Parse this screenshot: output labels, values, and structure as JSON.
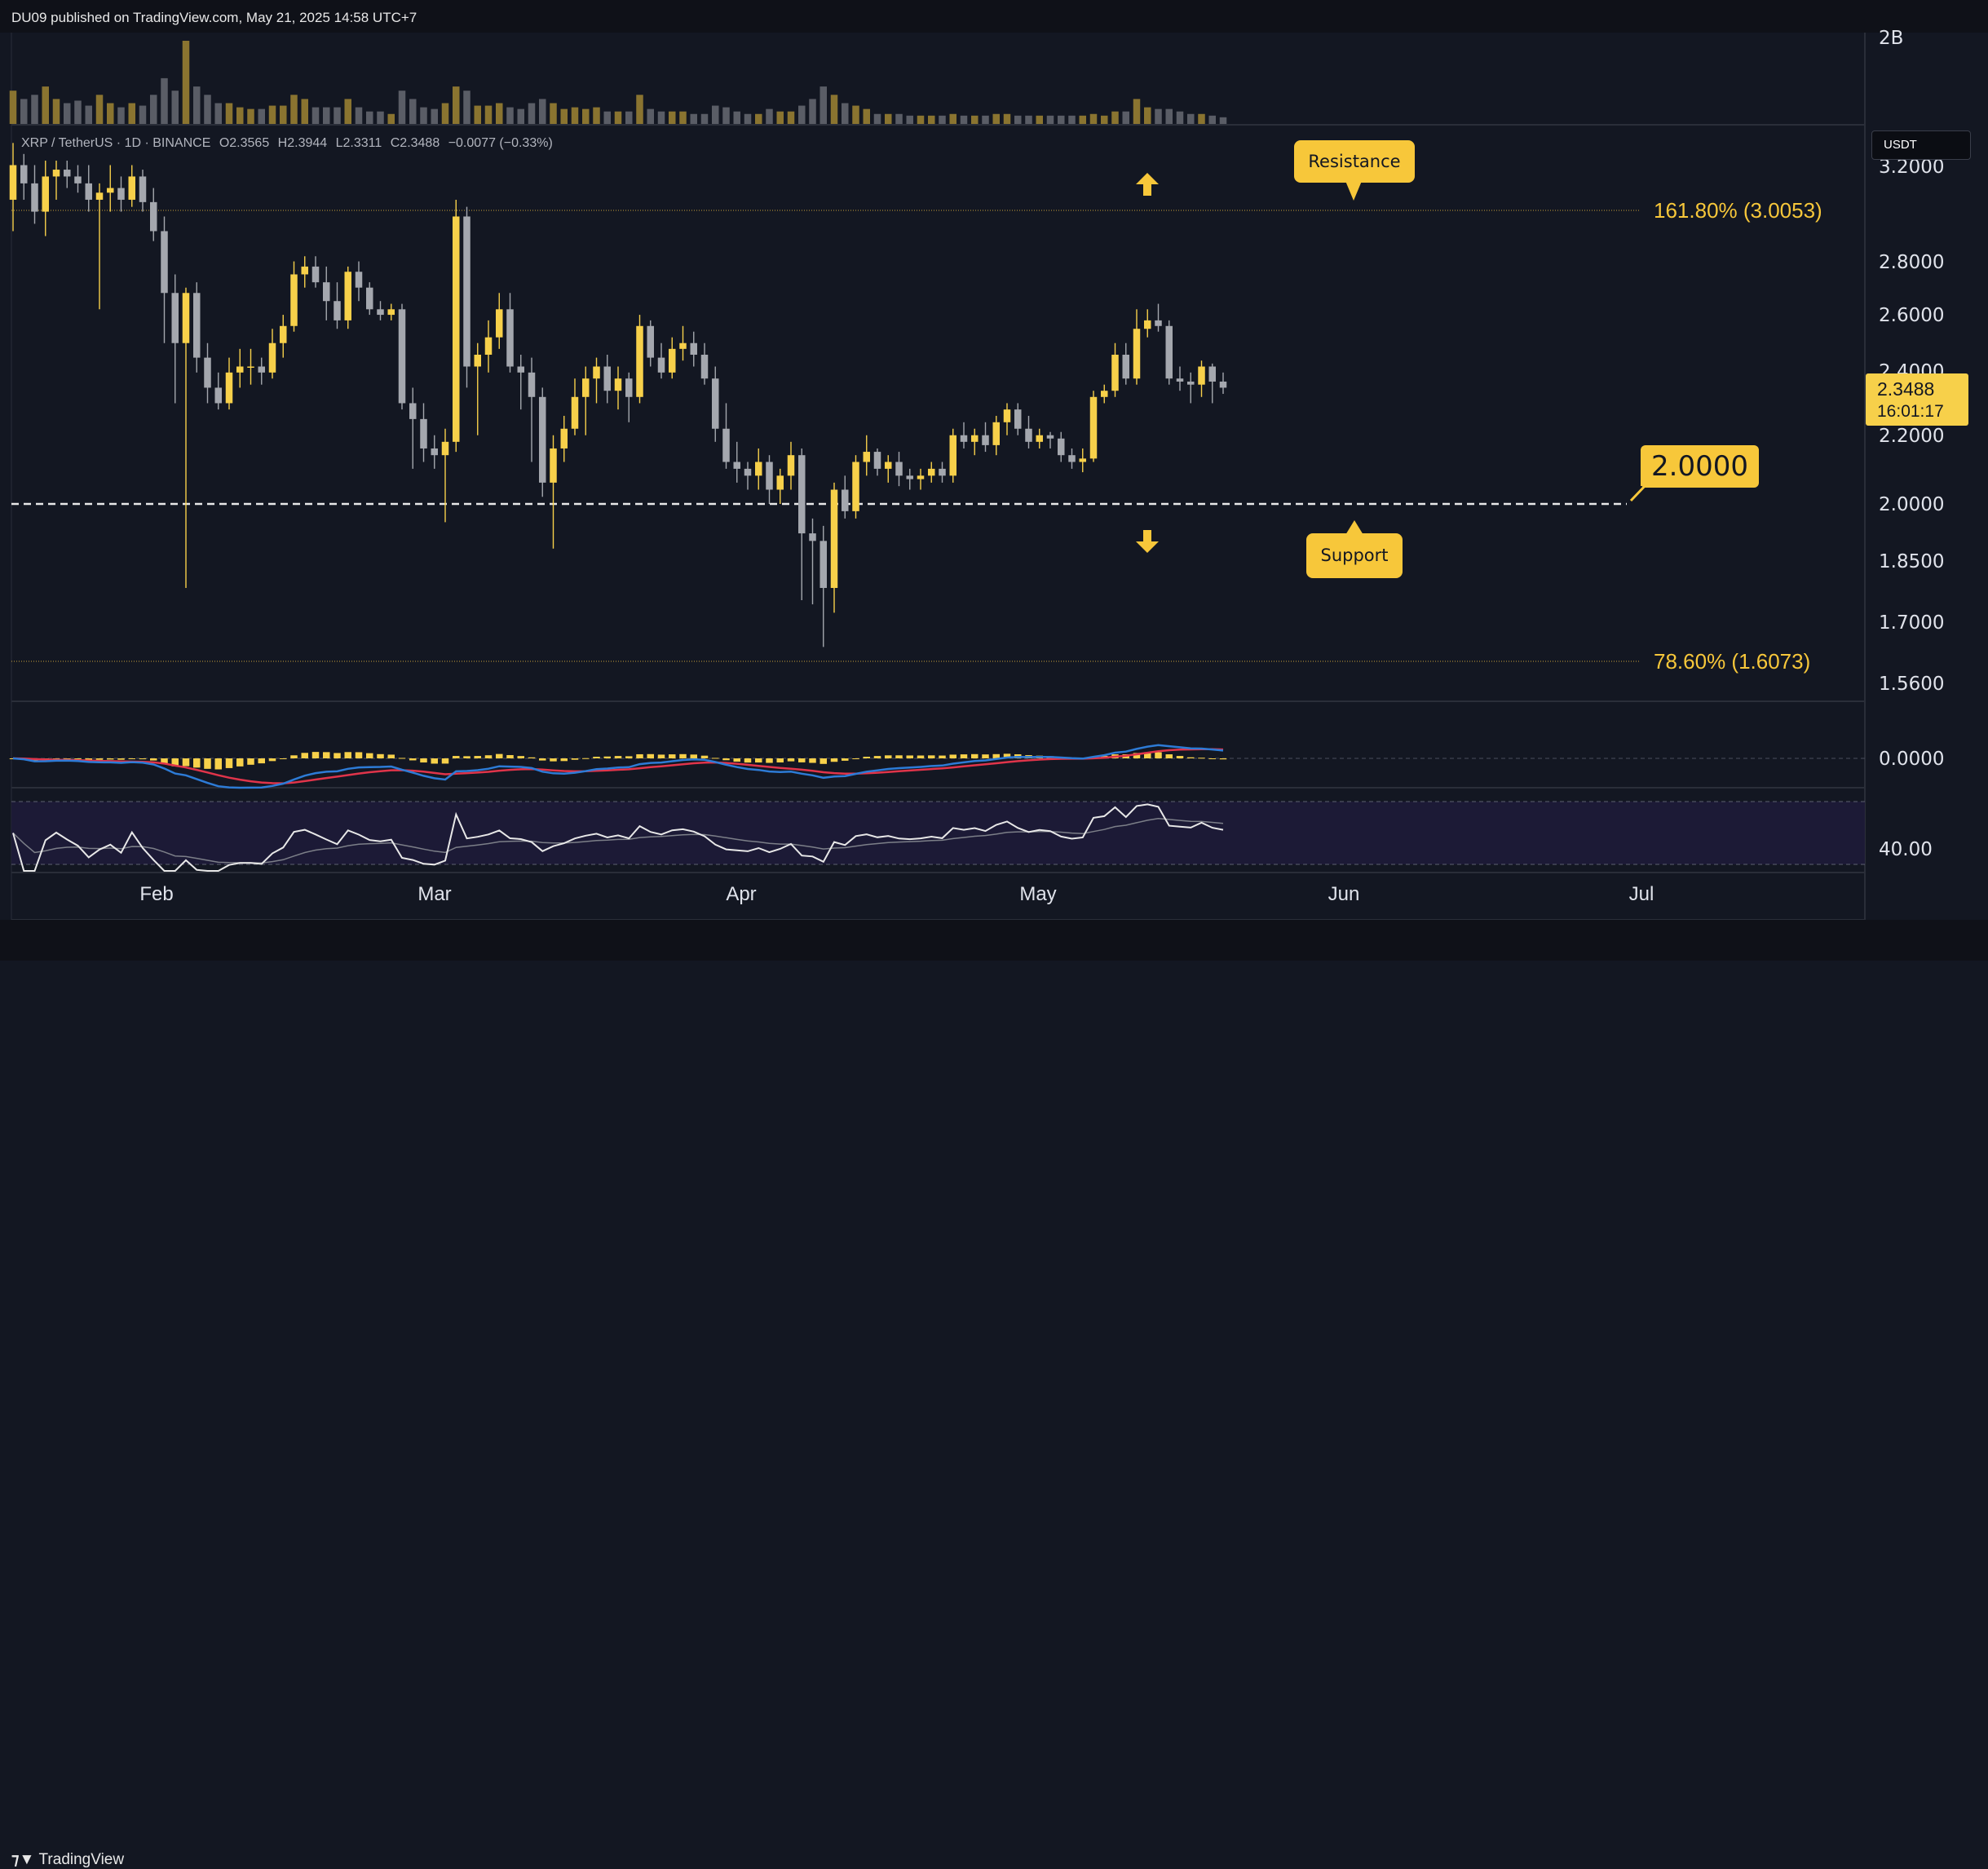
{
  "header": {
    "published": "DU09 published on TradingView.com, May 21, 2025 14:58 UTC+7"
  },
  "legend": {
    "symbol": "XRP / TetherUS · 1D · BINANCE",
    "open": "O2.3565",
    "high": "H2.3944",
    "low": "L2.3311",
    "close": "C2.3488",
    "change": "−0.0077 (−0.33%)"
  },
  "currency_button": "USDT",
  "last_price": {
    "value": "2.3488",
    "countdown": "16:01:17"
  },
  "annotations": {
    "resistance": "Resistance",
    "support": "Support",
    "level_box": "2.0000",
    "fib_upper": "161.80% (3.0053)",
    "fib_lower": "78.60% (1.6073)"
  },
  "footer": {
    "brand": "TradingView"
  },
  "colors": {
    "background": "#131722",
    "bull": "#f7d04a",
    "bear": "#a4a7ae",
    "accent": "#f7c73a",
    "macd_line": "#2d7bd6",
    "signal_line": "#e0344a",
    "rsi_line": "#e8e8e8"
  },
  "chart_data": {
    "type": "candlestick",
    "symbol": "XRP / TetherUS",
    "interval": "1D",
    "exchange": "BINANCE",
    "y_scale": "log",
    "price_axis_ticks": [
      "3.2000",
      "2.8000",
      "2.6000",
      "2.4000",
      "2.2000",
      "2.0000",
      "1.8500",
      "1.7000",
      "1.5600"
    ],
    "volume_axis_ticks": [
      "2B"
    ],
    "macd_axis_ticks": [
      "0.0000"
    ],
    "rsi_axis_ticks": [
      "40.00"
    ],
    "x_axis_ticks": [
      "Feb",
      "Mar",
      "Apr",
      "May",
      "Jun",
      "Jul"
    ],
    "fib_levels": [
      {
        "label": "161.80% (3.0053)",
        "price": 3.0053
      },
      {
        "label": "78.60% (1.6073)",
        "price": 1.6073
      }
    ],
    "support_level": 2.0,
    "candles": [
      [
        3.05,
        3.3,
        2.92,
        3.2
      ],
      [
        3.2,
        3.25,
        3.05,
        3.12
      ],
      [
        3.12,
        3.2,
        2.95,
        3.0
      ],
      [
        3.0,
        3.22,
        2.9,
        3.15
      ],
      [
        3.15,
        3.22,
        3.05,
        3.18
      ],
      [
        3.18,
        3.22,
        3.1,
        3.15
      ],
      [
        3.15,
        3.2,
        3.08,
        3.12
      ],
      [
        3.12,
        3.2,
        3.0,
        3.05
      ],
      [
        3.05,
        3.12,
        2.62,
        3.08
      ],
      [
        3.08,
        3.2,
        3.0,
        3.1
      ],
      [
        3.1,
        3.15,
        3.0,
        3.05
      ],
      [
        3.05,
        3.2,
        3.02,
        3.15
      ],
      [
        3.15,
        3.18,
        3.0,
        3.04
      ],
      [
        3.04,
        3.1,
        2.88,
        2.92
      ],
      [
        2.92,
        2.98,
        2.5,
        2.68
      ],
      [
        2.68,
        2.75,
        2.3,
        2.5
      ],
      [
        2.5,
        2.7,
        1.78,
        2.68
      ],
      [
        2.68,
        2.72,
        2.4,
        2.45
      ],
      [
        2.45,
        2.5,
        2.3,
        2.35
      ],
      [
        2.35,
        2.4,
        2.28,
        2.3
      ],
      [
        2.3,
        2.45,
        2.28,
        2.4
      ],
      [
        2.4,
        2.48,
        2.35,
        2.42
      ],
      [
        2.42,
        2.48,
        2.36,
        2.42
      ],
      [
        2.42,
        2.45,
        2.36,
        2.4
      ],
      [
        2.4,
        2.55,
        2.38,
        2.5
      ],
      [
        2.5,
        2.6,
        2.45,
        2.56
      ],
      [
        2.56,
        2.8,
        2.54,
        2.75
      ],
      [
        2.75,
        2.82,
        2.7,
        2.78
      ],
      [
        2.78,
        2.82,
        2.7,
        2.72
      ],
      [
        2.72,
        2.78,
        2.58,
        2.65
      ],
      [
        2.65,
        2.72,
        2.55,
        2.58
      ],
      [
        2.58,
        2.78,
        2.55,
        2.76
      ],
      [
        2.76,
        2.8,
        2.65,
        2.7
      ],
      [
        2.7,
        2.72,
        2.6,
        2.62
      ],
      [
        2.62,
        2.65,
        2.58,
        2.6
      ],
      [
        2.6,
        2.64,
        2.58,
        2.62
      ],
      [
        2.62,
        2.64,
        2.28,
        2.3
      ],
      [
        2.3,
        2.35,
        2.1,
        2.25
      ],
      [
        2.25,
        2.3,
        2.12,
        2.16
      ],
      [
        2.16,
        2.2,
        2.1,
        2.14
      ],
      [
        2.14,
        2.22,
        1.95,
        2.18
      ],
      [
        2.18,
        3.05,
        2.15,
        2.98
      ],
      [
        2.98,
        3.02,
        2.35,
        2.42
      ],
      [
        2.42,
        2.5,
        2.2,
        2.46
      ],
      [
        2.46,
        2.58,
        2.4,
        2.52
      ],
      [
        2.52,
        2.68,
        2.48,
        2.62
      ],
      [
        2.62,
        2.68,
        2.4,
        2.42
      ],
      [
        2.42,
        2.46,
        2.28,
        2.4
      ],
      [
        2.4,
        2.45,
        2.12,
        2.32
      ],
      [
        2.32,
        2.35,
        2.02,
        2.06
      ],
      [
        2.06,
        2.2,
        1.88,
        2.16
      ],
      [
        2.16,
        2.26,
        2.12,
        2.22
      ],
      [
        2.22,
        2.38,
        2.2,
        2.32
      ],
      [
        2.32,
        2.42,
        2.2,
        2.38
      ],
      [
        2.38,
        2.45,
        2.3,
        2.42
      ],
      [
        2.42,
        2.46,
        2.3,
        2.34
      ],
      [
        2.34,
        2.42,
        2.28,
        2.38
      ],
      [
        2.38,
        2.4,
        2.24,
        2.32
      ],
      [
        2.32,
        2.6,
        2.3,
        2.56
      ],
      [
        2.56,
        2.58,
        2.42,
        2.45
      ],
      [
        2.45,
        2.5,
        2.38,
        2.4
      ],
      [
        2.4,
        2.52,
        2.38,
        2.48
      ],
      [
        2.48,
        2.56,
        2.44,
        2.5
      ],
      [
        2.5,
        2.54,
        2.42,
        2.46
      ],
      [
        2.46,
        2.5,
        2.36,
        2.38
      ],
      [
        2.38,
        2.42,
        2.18,
        2.22
      ],
      [
        2.22,
        2.3,
        2.1,
        2.12
      ],
      [
        2.12,
        2.18,
        2.06,
        2.1
      ],
      [
        2.1,
        2.12,
        2.04,
        2.08
      ],
      [
        2.08,
        2.16,
        2.04,
        2.12
      ],
      [
        2.12,
        2.14,
        2.0,
        2.04
      ],
      [
        2.04,
        2.1,
        2.0,
        2.08
      ],
      [
        2.08,
        2.18,
        2.04,
        2.14
      ],
      [
        2.14,
        2.16,
        1.75,
        1.92
      ],
      [
        1.92,
        1.96,
        1.74,
        1.9
      ],
      [
        1.9,
        1.94,
        1.64,
        1.78
      ],
      [
        1.78,
        2.06,
        1.72,
        2.04
      ],
      [
        2.04,
        2.08,
        1.96,
        1.98
      ],
      [
        1.98,
        2.14,
        1.96,
        2.12
      ],
      [
        2.12,
        2.2,
        2.08,
        2.15
      ],
      [
        2.15,
        2.16,
        2.08,
        2.1
      ],
      [
        2.1,
        2.14,
        2.06,
        2.12
      ],
      [
        2.12,
        2.15,
        2.05,
        2.08
      ],
      [
        2.08,
        2.1,
        2.04,
        2.07
      ],
      [
        2.07,
        2.1,
        2.04,
        2.08
      ],
      [
        2.08,
        2.12,
        2.06,
        2.1
      ],
      [
        2.1,
        2.12,
        2.06,
        2.08
      ],
      [
        2.08,
        2.22,
        2.06,
        2.2
      ],
      [
        2.2,
        2.24,
        2.16,
        2.18
      ],
      [
        2.18,
        2.22,
        2.14,
        2.2
      ],
      [
        2.2,
        2.24,
        2.15,
        2.17
      ],
      [
        2.17,
        2.26,
        2.14,
        2.24
      ],
      [
        2.24,
        2.3,
        2.2,
        2.28
      ],
      [
        2.28,
        2.3,
        2.2,
        2.22
      ],
      [
        2.22,
        2.26,
        2.16,
        2.18
      ],
      [
        2.18,
        2.22,
        2.16,
        2.2
      ],
      [
        2.2,
        2.21,
        2.16,
        2.19
      ],
      [
        2.19,
        2.21,
        2.12,
        2.14
      ],
      [
        2.14,
        2.16,
        2.1,
        2.12
      ],
      [
        2.12,
        2.16,
        2.09,
        2.13
      ],
      [
        2.13,
        2.34,
        2.12,
        2.32
      ],
      [
        2.32,
        2.36,
        2.3,
        2.34
      ],
      [
        2.34,
        2.5,
        2.32,
        2.46
      ],
      [
        2.46,
        2.5,
        2.36,
        2.38
      ],
      [
        2.38,
        2.62,
        2.36,
        2.55
      ],
      [
        2.55,
        2.62,
        2.52,
        2.58
      ],
      [
        2.58,
        2.64,
        2.54,
        2.56
      ],
      [
        2.56,
        2.58,
        2.36,
        2.38
      ],
      [
        2.38,
        2.42,
        2.34,
        2.37
      ],
      [
        2.37,
        2.4,
        2.3,
        2.36
      ],
      [
        2.36,
        2.44,
        2.32,
        2.42
      ],
      [
        2.42,
        2.43,
        2.3,
        2.37
      ],
      [
        2.37,
        2.4,
        2.33,
        2.35
      ]
    ],
    "volume_relative": [
      0.4,
      0.3,
      0.35,
      0.45,
      0.3,
      0.25,
      0.28,
      0.22,
      0.35,
      0.25,
      0.2,
      0.25,
      0.22,
      0.35,
      0.55,
      0.4,
      1.0,
      0.45,
      0.35,
      0.25,
      0.25,
      0.2,
      0.18,
      0.18,
      0.22,
      0.22,
      0.35,
      0.3,
      0.2,
      0.2,
      0.2,
      0.3,
      0.2,
      0.15,
      0.15,
      0.12,
      0.4,
      0.3,
      0.2,
      0.18,
      0.25,
      0.45,
      0.4,
      0.22,
      0.22,
      0.25,
      0.2,
      0.18,
      0.25,
      0.3,
      0.25,
      0.18,
      0.2,
      0.18,
      0.2,
      0.15,
      0.15,
      0.15,
      0.35,
      0.18,
      0.15,
      0.15,
      0.15,
      0.12,
      0.12,
      0.22,
      0.2,
      0.15,
      0.12,
      0.12,
      0.18,
      0.15,
      0.15,
      0.22,
      0.3,
      0.45,
      0.35,
      0.25,
      0.22,
      0.18,
      0.12,
      0.12,
      0.12,
      0.1,
      0.1,
      0.1,
      0.1,
      0.12,
      0.1,
      0.1,
      0.1,
      0.12,
      0.12,
      0.1,
      0.1,
      0.1,
      0.1,
      0.1,
      0.1,
      0.1,
      0.12,
      0.1,
      0.15,
      0.15,
      0.3,
      0.2,
      0.18,
      0.18,
      0.15,
      0.12,
      0.12,
      0.1,
      0.08
    ]
  }
}
